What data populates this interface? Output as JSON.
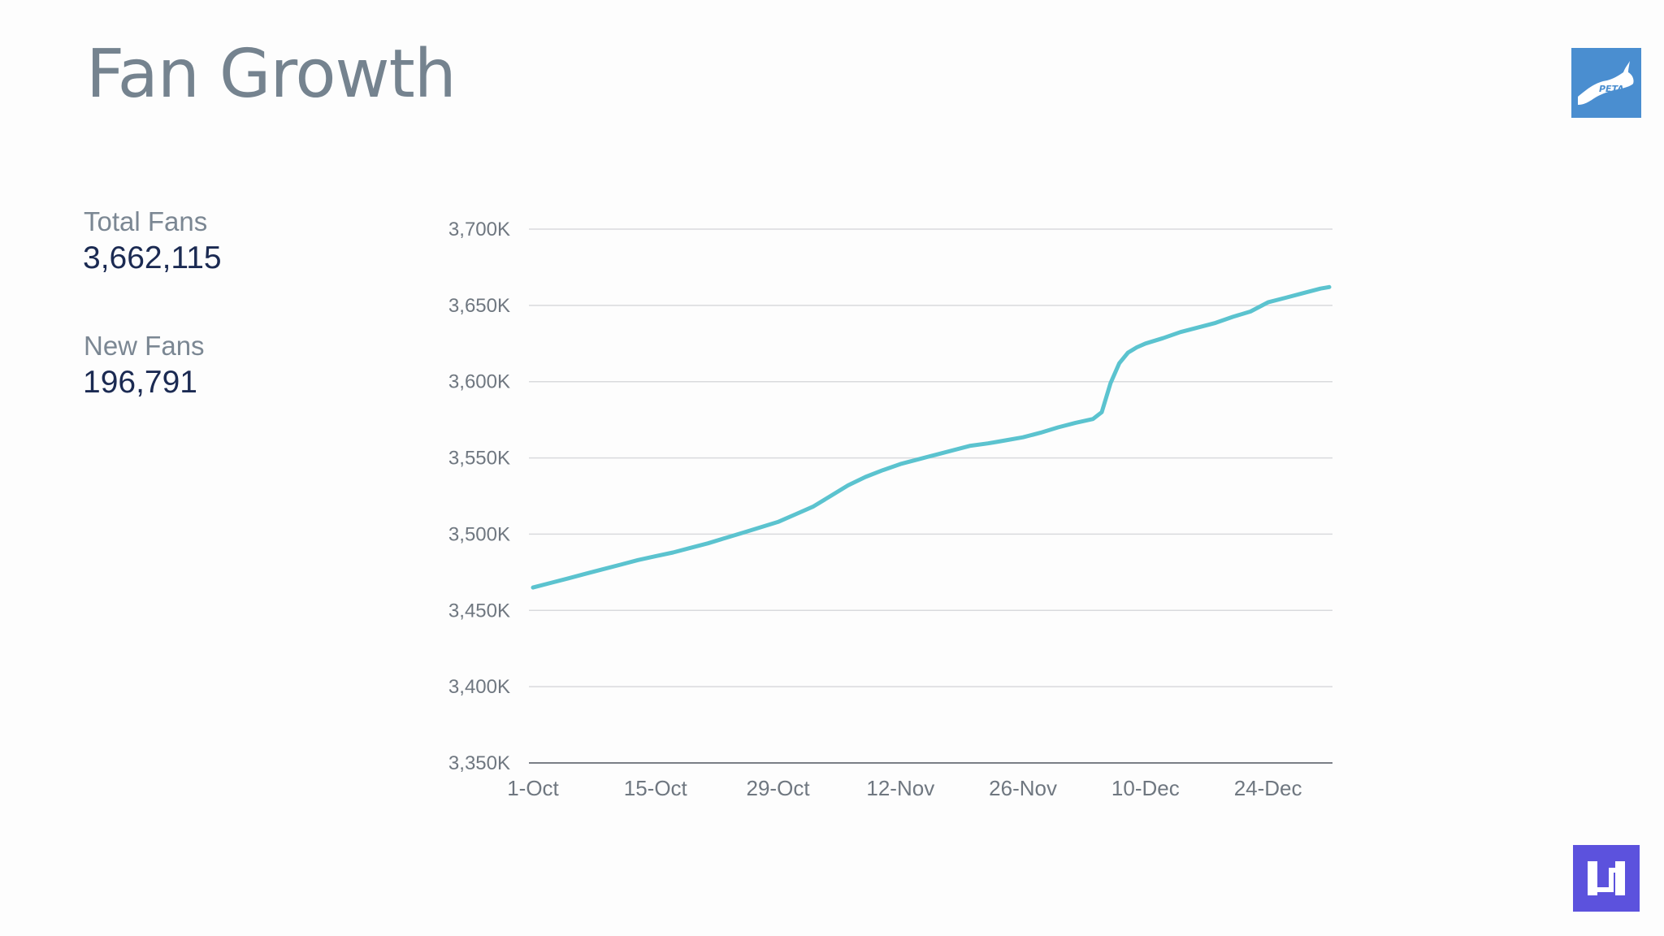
{
  "page": {
    "title": "Fan Growth"
  },
  "stats": {
    "total_label": "Total Fans",
    "total_value": "3,662,115",
    "new_label": "New Fans",
    "new_value": "196,791"
  },
  "logos": {
    "top_right": "PETA",
    "bottom_right_icon": "brand-u-logo-icon"
  },
  "colors": {
    "line": "#5bc3cf",
    "grid": "#d9dadd",
    "axis": "#7a7f86",
    "title": "#75838f",
    "value": "#1b2a52",
    "peta_bg": "#4a8ed0",
    "u_bg": "#5c52dd"
  },
  "chart_data": {
    "type": "line",
    "title": "",
    "xlabel": "",
    "ylabel": "",
    "ylim": [
      3350000,
      3700000
    ],
    "y_ticks": [
      3350000,
      3400000,
      3450000,
      3500000,
      3550000,
      3600000,
      3650000,
      3700000
    ],
    "y_tick_labels": [
      "3,350K",
      "3,400K",
      "3,450K",
      "3,500K",
      "3,550K",
      "3,600K",
      "3,650K",
      "3,700K"
    ],
    "x_domain_days": [
      0,
      91
    ],
    "x_ticks": [
      {
        "day": 0,
        "label": "1-Oct"
      },
      {
        "day": 14,
        "label": "15-Oct"
      },
      {
        "day": 28,
        "label": "29-Oct"
      },
      {
        "day": 42,
        "label": "12-Nov"
      },
      {
        "day": 56,
        "label": "26-Nov"
      },
      {
        "day": 70,
        "label": "10-Dec"
      },
      {
        "day": 84,
        "label": "24-Dec"
      }
    ],
    "grid": true,
    "legend": "none",
    "series": [
      {
        "name": "Total Fans",
        "points": [
          [
            0,
            3465000
          ],
          [
            2,
            3468000
          ],
          [
            4,
            3471000
          ],
          [
            6,
            3474000
          ],
          [
            8,
            3477000
          ],
          [
            10,
            3480000
          ],
          [
            12,
            3483000
          ],
          [
            14,
            3485500
          ],
          [
            16,
            3488000
          ],
          [
            18,
            3491000
          ],
          [
            20,
            3494000
          ],
          [
            22,
            3497500
          ],
          [
            24,
            3501000
          ],
          [
            26,
            3504500
          ],
          [
            28,
            3508000
          ],
          [
            30,
            3513000
          ],
          [
            32,
            3518000
          ],
          [
            34,
            3525000
          ],
          [
            36,
            3532000
          ],
          [
            38,
            3537500
          ],
          [
            40,
            3542000
          ],
          [
            42,
            3546000
          ],
          [
            44,
            3549000
          ],
          [
            46,
            3552000
          ],
          [
            48,
            3555000
          ],
          [
            50,
            3558000
          ],
          [
            52,
            3559500
          ],
          [
            53,
            3560500
          ],
          [
            54,
            3561500
          ],
          [
            56,
            3563500
          ],
          [
            58,
            3566500
          ],
          [
            60,
            3570000
          ],
          [
            62,
            3573000
          ],
          [
            64,
            3575500
          ],
          [
            65,
            3580000
          ],
          [
            66,
            3599000
          ],
          [
            67,
            3612000
          ],
          [
            68,
            3619000
          ],
          [
            69,
            3622500
          ],
          [
            70,
            3625000
          ],
          [
            72,
            3628500
          ],
          [
            74,
            3632500
          ],
          [
            76,
            3635500
          ],
          [
            78,
            3638500
          ],
          [
            80,
            3642500
          ],
          [
            82,
            3646000
          ],
          [
            84,
            3652000
          ],
          [
            86,
            3655000
          ],
          [
            88,
            3658000
          ],
          [
            90,
            3661000
          ],
          [
            91,
            3662000
          ]
        ]
      }
    ]
  }
}
